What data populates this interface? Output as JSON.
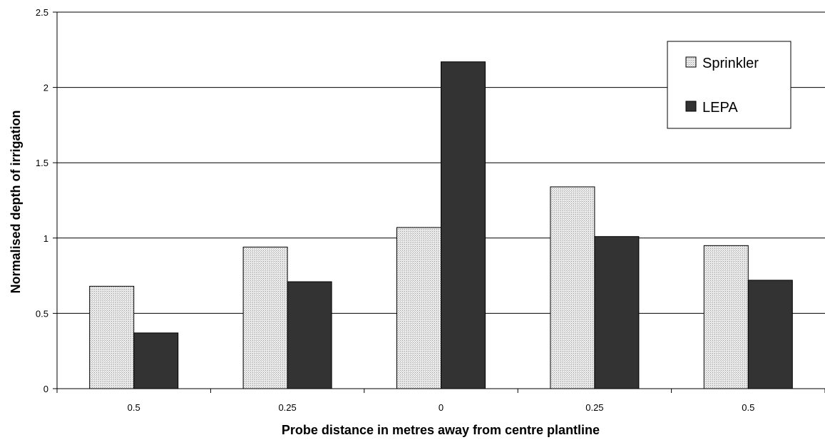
{
  "chart_data": {
    "type": "bar",
    "categories": [
      "0.5",
      "0.25",
      "0",
      "0.25",
      "0.5"
    ],
    "series": [
      {
        "name": "Sprinkler",
        "values": [
          0.68,
          0.94,
          1.07,
          1.34,
          0.95
        ]
      },
      {
        "name": "LEPA",
        "values": [
          0.37,
          0.71,
          2.17,
          1.01,
          0.72
        ]
      }
    ],
    "xlabel": "Probe distance in metres away from centre plantline",
    "ylabel": "Normalised depth of irrigation",
    "ylim": [
      0,
      2.5
    ],
    "yticks": [
      "0",
      "0.5",
      "1",
      "1.5",
      "2",
      "2.5"
    ],
    "grid": true,
    "legend_position": "top-right",
    "colors": {
      "Sprinkler": "#e4e4e4",
      "LEPA": "#333333"
    }
  }
}
